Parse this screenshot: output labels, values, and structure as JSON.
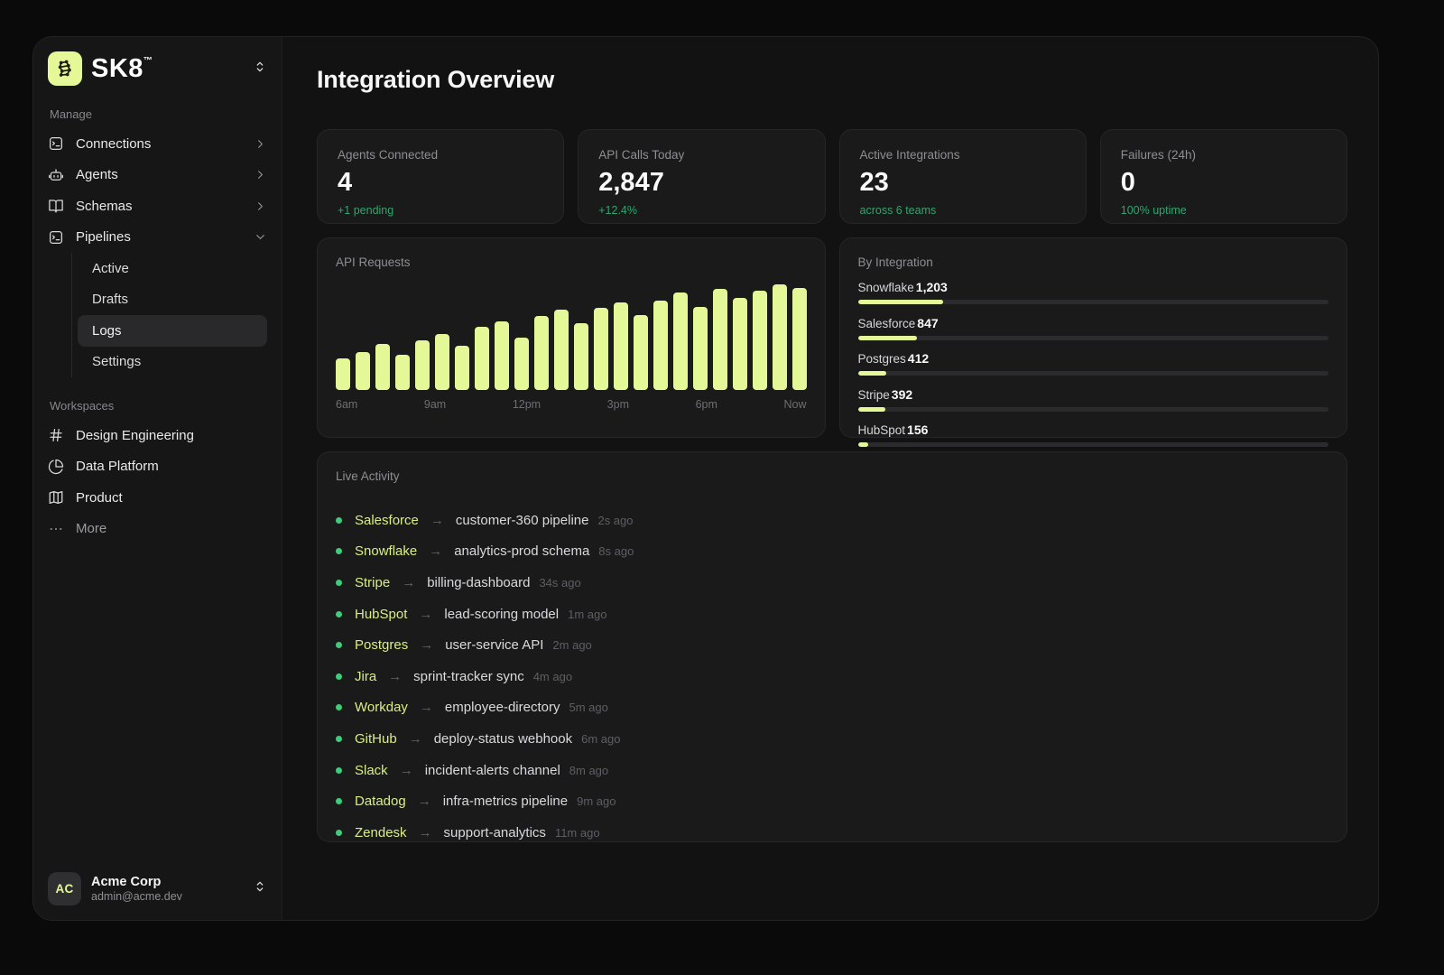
{
  "brand": {
    "name": "SK8",
    "tm": "™"
  },
  "sidebar": {
    "sections": [
      {
        "label": "Manage",
        "items": [
          {
            "label": "Connections",
            "icon": "terminal-square",
            "chevron": "right"
          },
          {
            "label": "Agents",
            "icon": "bot",
            "chevron": "right"
          },
          {
            "label": "Schemas",
            "icon": "book-open",
            "chevron": "right"
          },
          {
            "label": "Pipelines",
            "icon": "terminal-square",
            "chevron": "down",
            "children": [
              "Active",
              "Drafts",
              "Logs",
              "Settings"
            ],
            "active_child": "Logs"
          }
        ]
      },
      {
        "label": "Workspaces",
        "items": [
          {
            "label": "Design Engineering",
            "icon": "hash"
          },
          {
            "label": "Data Platform",
            "icon": "pie-chart"
          },
          {
            "label": "Product",
            "icon": "map"
          },
          {
            "label": "More",
            "icon": "ellipsis",
            "dim": true
          }
        ]
      }
    ],
    "user": {
      "initials": "AC",
      "name": "Acme Corp",
      "email": "admin@acme.dev"
    }
  },
  "header": {
    "title": "Integration Overview"
  },
  "stats": [
    {
      "label": "Agents Connected",
      "value": "4",
      "sub": "+1 pending"
    },
    {
      "label": "API Calls Today",
      "value": "2,847",
      "sub": "+12.4%"
    },
    {
      "label": "Active Integrations",
      "value": "23",
      "sub": "across 6 teams"
    },
    {
      "label": "Failures (24h)",
      "value": "0",
      "sub": "100% uptime"
    }
  ],
  "chart_data": {
    "type": "bar",
    "title": "API Requests",
    "x_tick_labels": [
      "6am",
      "9am",
      "12pm",
      "3pm",
      "6pm",
      "Now"
    ],
    "values_pct_of_max": [
      30,
      36,
      44,
      33,
      47,
      53,
      42,
      60,
      65,
      50,
      70,
      76,
      63,
      78,
      83,
      71,
      85,
      92,
      79,
      96,
      87,
      94,
      100,
      97
    ],
    "note_axis": "no y-axis labels shown; values normalized to tallest bar = 100",
    "grid": false,
    "bar_color": "#e5f897"
  },
  "by_integration": {
    "title": "By Integration",
    "rows": [
      {
        "name": "Snowflake",
        "value": "1,203",
        "bar_pct": 18.1
      },
      {
        "name": "Salesforce",
        "value": "847",
        "bar_pct": 12.6
      },
      {
        "name": "Postgres",
        "value": "412",
        "bar_pct": 6.1
      },
      {
        "name": "Stripe",
        "value": "392",
        "bar_pct": 5.8
      },
      {
        "name": "HubSpot",
        "value": "156",
        "bar_pct": 2.2
      }
    ]
  },
  "activity": {
    "title": "Live Activity",
    "rows": [
      {
        "source": "Salesforce",
        "target": "customer-360 pipeline",
        "time": "2s ago"
      },
      {
        "source": "Snowflake",
        "target": "analytics-prod schema",
        "time": "8s ago"
      },
      {
        "source": "Stripe",
        "target": "billing-dashboard",
        "time": "34s ago"
      },
      {
        "source": "HubSpot",
        "target": "lead-scoring model",
        "time": "1m ago"
      },
      {
        "source": "Postgres",
        "target": "user-service API",
        "time": "2m ago"
      },
      {
        "source": "Jira",
        "target": "sprint-tracker sync",
        "time": "4m ago"
      },
      {
        "source": "Workday",
        "target": "employee-directory",
        "time": "5m ago"
      },
      {
        "source": "GitHub",
        "target": "deploy-status webhook",
        "time": "6m ago"
      },
      {
        "source": "Slack",
        "target": "incident-alerts channel",
        "time": "8m ago"
      },
      {
        "source": "Datadog",
        "target": "infra-metrics pipeline",
        "time": "9m ago"
      },
      {
        "source": "Zendesk",
        "target": "support-analytics",
        "time": "11m ago"
      }
    ]
  },
  "colors": {
    "lime": "#e5f897",
    "lime_text": "#d9ee82",
    "green_text": "#31a46e",
    "green_dot": "#3ecb7c",
    "card_bg": "#1a1a1b",
    "sidebar_bg": "#161617",
    "main_bg": "#121213"
  }
}
